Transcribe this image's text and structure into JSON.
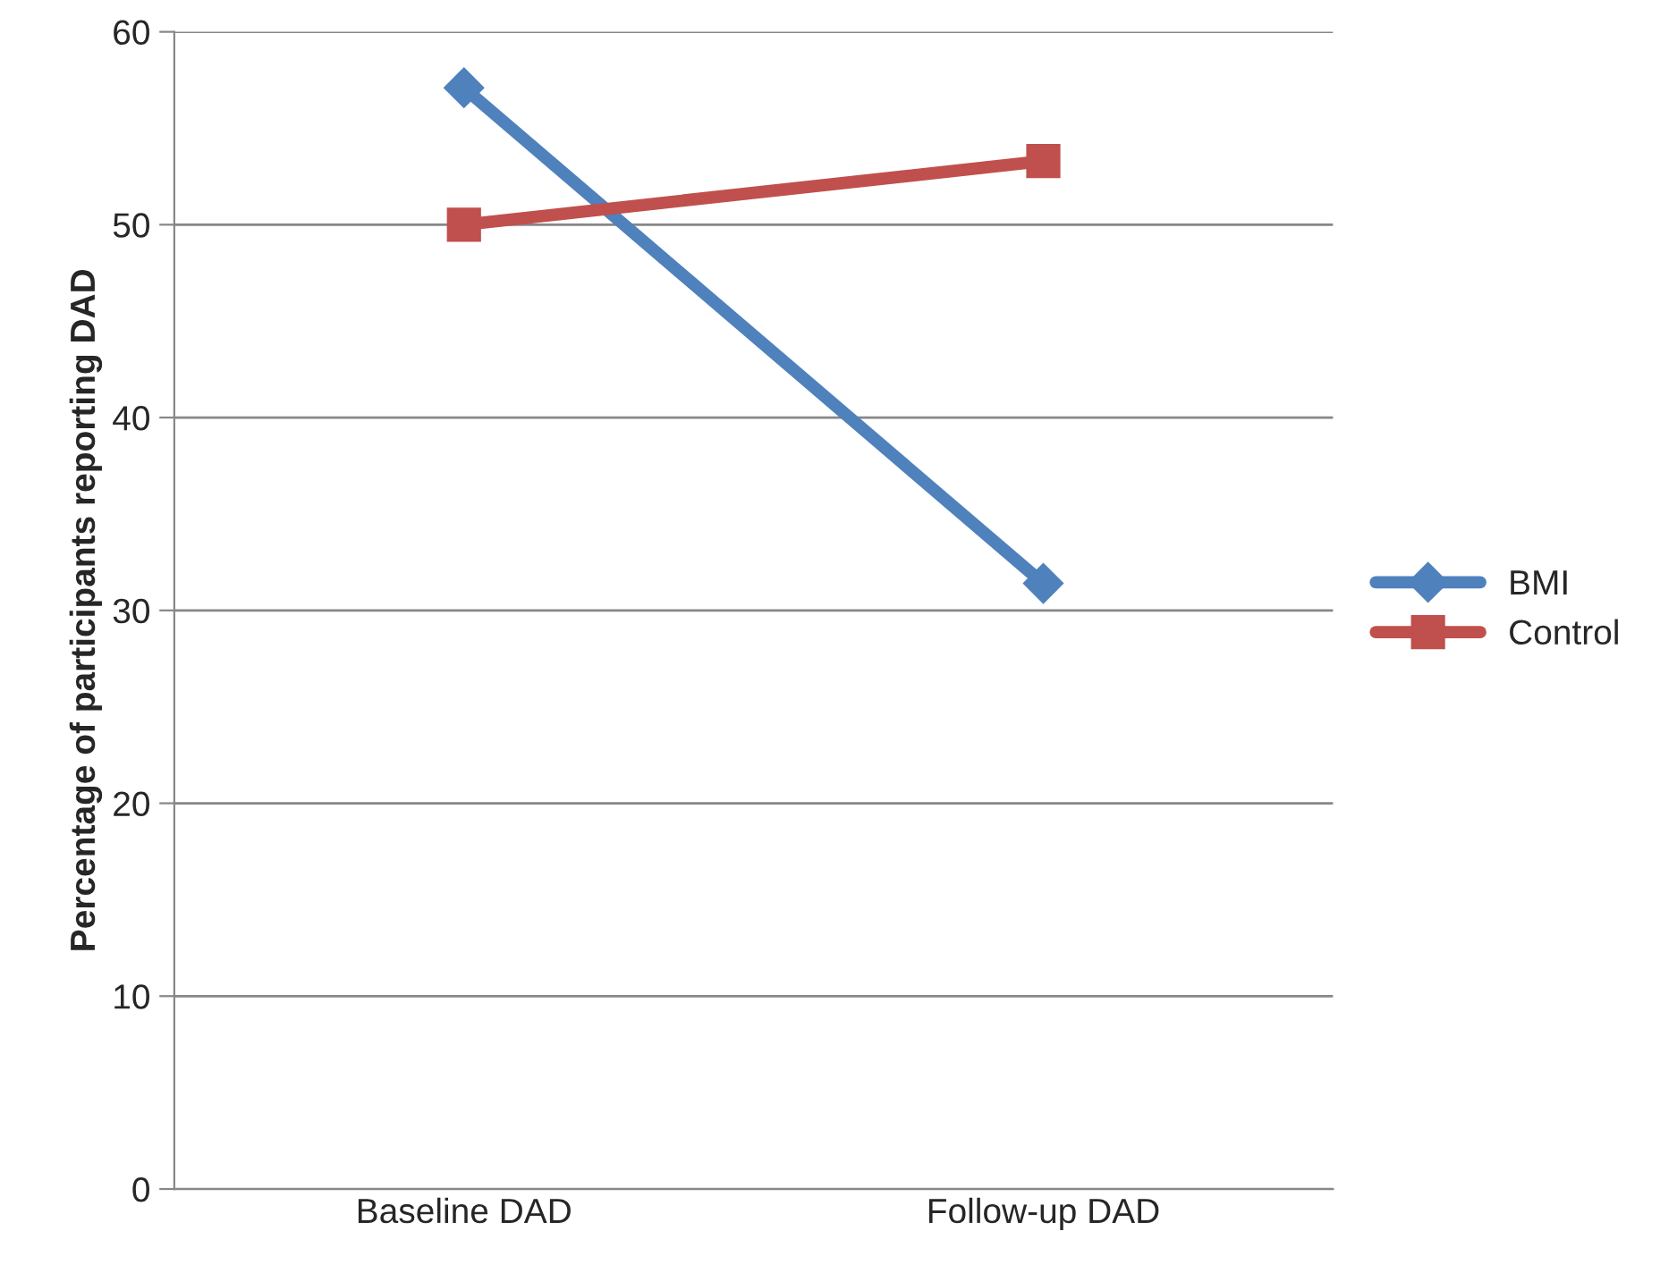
{
  "chart_data": {
    "type": "line",
    "ylabel": "Percentage of participants reporting DAD",
    "categories": [
      "Baseline DAD",
      "Follow-up DAD"
    ],
    "series": [
      {
        "name": "BMI",
        "color": "#4f81bd",
        "values": [
          57.1,
          31.4
        ],
        "marker": "diamond"
      },
      {
        "name": "Control",
        "color": "#c0504d",
        "values": [
          50,
          53.3
        ],
        "marker": "square"
      }
    ],
    "ylim": [
      0,
      60
    ],
    "yticks": [
      0,
      10,
      20,
      30,
      40,
      50,
      60
    ],
    "grid": "y",
    "legend": "right",
    "line_style": "solid"
  }
}
